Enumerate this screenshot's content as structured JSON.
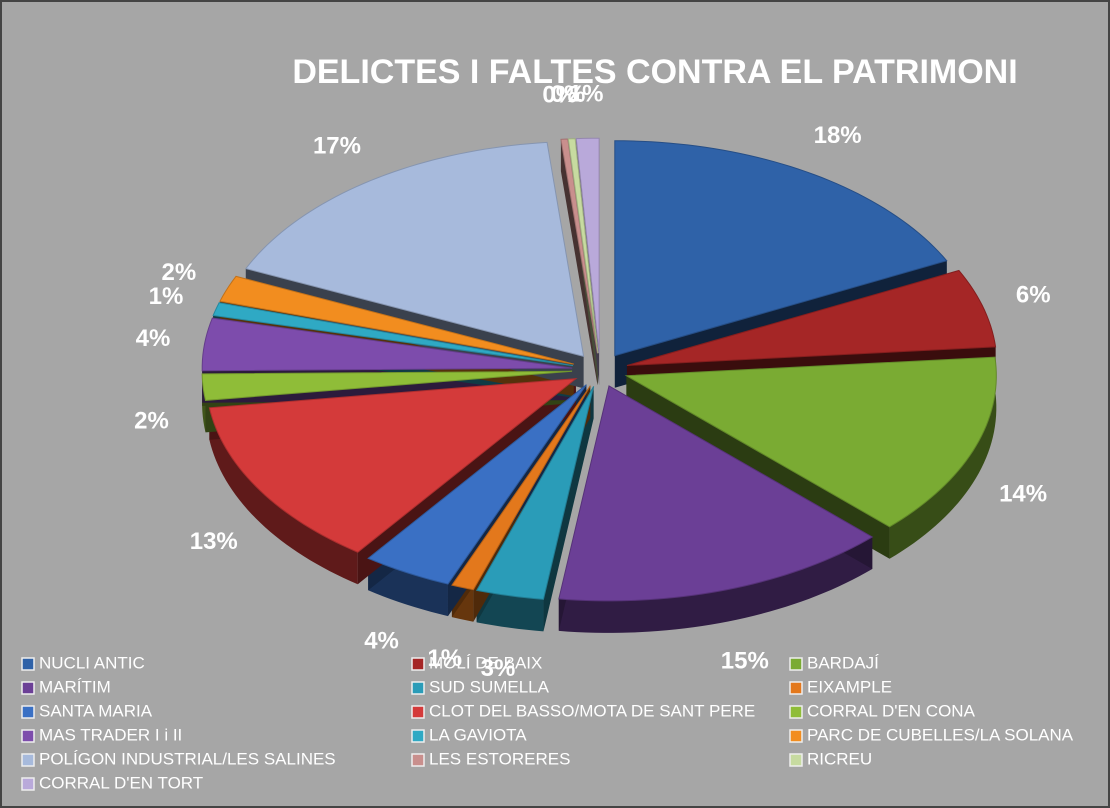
{
  "chart_data": {
    "type": "pie",
    "title": "DELICTES I FALTES CONTRA EL PATRIMONI",
    "categories": [
      "NUCLI ANTIC",
      "MOLÍ DE BAIX",
      "BARDAJÍ",
      "MARÍTIM",
      "SUD SUMELLA",
      "EIXAMPLE",
      "SANTA MARIA",
      "CLOT DEL BASSO/MOTA DE SANT PERE",
      "CORRAL D'EN CONA",
      "MAS TRADER I i II",
      "LA GAVIOTA",
      "PARC DE CUBELLES/LA SOLANA",
      "POLÍGON INDUSTRIAL/LES SALINES",
      "LES ESTORERES",
      "RICREU",
      "CORRAL D'EN TORT"
    ],
    "values": [
      18,
      6,
      14,
      15,
      3,
      1,
      4,
      13,
      2,
      4,
      1,
      2,
      17,
      0.3,
      0.3,
      1
    ],
    "value_labels": [
      "18%",
      "6%",
      "14%",
      "15%",
      "3%",
      "1%",
      "4%",
      "13%",
      "2%",
      "4%",
      "1%",
      "2%",
      "17%",
      "0%",
      "0%",
      "1%"
    ],
    "colors": [
      "#2f62a8",
      "#a52626",
      "#7aab33",
      "#6b3f96",
      "#2a9cb8",
      "#e3781c",
      "#3a70c4",
      "#d43a3a",
      "#8fbd38",
      "#7d4cac",
      "#2fa9c4",
      "#f28d1f",
      "#a7badc",
      "#c98f8d",
      "#c7dba0",
      "#b9a9da"
    ],
    "legend": "bottom"
  }
}
